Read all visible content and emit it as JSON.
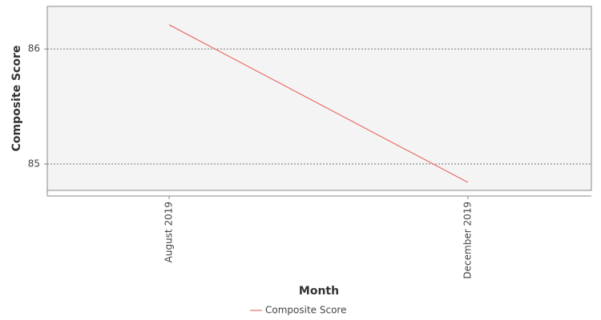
{
  "chart_data": {
    "type": "line",
    "x_label": "Month",
    "y_label": "Composite Score",
    "categories": [
      "August 2019",
      "December 2019"
    ],
    "series": [
      {
        "name": "Composite Score",
        "color": "#e8574f",
        "values": [
          86.21,
          84.84
        ]
      }
    ],
    "ylim": [
      84.77,
      86.37
    ],
    "yticks": [
      85,
      86
    ],
    "grid": true
  }
}
